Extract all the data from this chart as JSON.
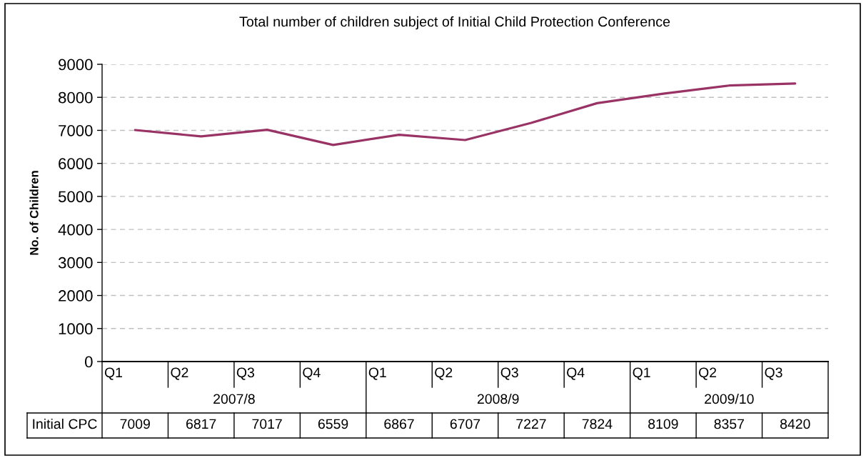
{
  "chart_data": {
    "type": "line",
    "title": "Total number of children subject of Initial Child Protection Conference",
    "ylabel": "No. of Children",
    "categories": [
      "Q1",
      "Q2",
      "Q3",
      "Q4",
      "Q1",
      "Q2",
      "Q3",
      "Q4",
      "Q1",
      "Q2",
      "Q3"
    ],
    "series": [
      {
        "name": "Initial CPC",
        "color": "#993366",
        "values": [
          7009,
          6817,
          7017,
          6559,
          6867,
          6707,
          7227,
          7824,
          8109,
          8357,
          8420
        ]
      }
    ],
    "ylim": [
      0,
      9000
    ],
    "yticks": [
      0,
      1000,
      2000,
      3000,
      4000,
      5000,
      6000,
      7000,
      8000,
      9000
    ],
    "grid": "y",
    "legend": false,
    "marker": "none",
    "line_style": "solid",
    "data_labels": true,
    "annotations": [
      "2007/8",
      "2008/9",
      "2009/10"
    ]
  }
}
